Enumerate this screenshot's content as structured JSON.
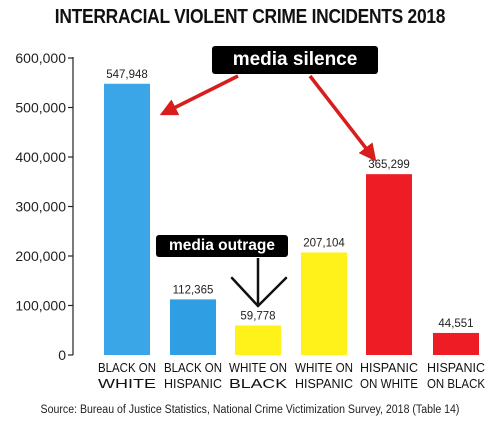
{
  "chart_data": {
    "type": "bar",
    "title": "INTERRACIAL VIOLENT CRIME INCIDENTS 2018",
    "categories": [
      [
        "BLACK ON",
        "WHITE"
      ],
      [
        "BLACK ON",
        "HISPANIC"
      ],
      [
        "WHITE ON",
        "BLACK"
      ],
      [
        "WHITE ON",
        "HISPANIC"
      ],
      [
        "HISPANIC",
        "ON WHITE"
      ],
      [
        "HISPANIC",
        "ON BLACK"
      ]
    ],
    "values": [
      547948,
      112365,
      59778,
      207104,
      365299,
      44551
    ],
    "value_labels": [
      "547,948",
      "112,365",
      "59,778",
      "207,104",
      "365,299",
      "44,551"
    ],
    "colors": [
      "#3aa6e8",
      "#2f9ee3",
      "#fff21a",
      "#fff21a",
      "#ee1c24",
      "#ee1c24"
    ],
    "ylim": [
      0,
      600000
    ],
    "yticks": [
      0,
      100000,
      200000,
      300000,
      400000,
      500000,
      600000
    ],
    "ytick_labels": [
      "0",
      "100,000",
      "200,000",
      "300,000",
      "400,000",
      "500,000",
      "600,000"
    ],
    "xlabel": "",
    "ylabel": "",
    "grid": false,
    "source": "Source: Bureau of Justice Statistics, National Crime Victimization Survey, 2018 (Table 14)"
  },
  "annotations": {
    "media_silence": "media silence",
    "media_outrage": "media outrage"
  },
  "colors": {
    "arrow_silence": "#d91c1c",
    "arrow_outrage": "#111111"
  }
}
